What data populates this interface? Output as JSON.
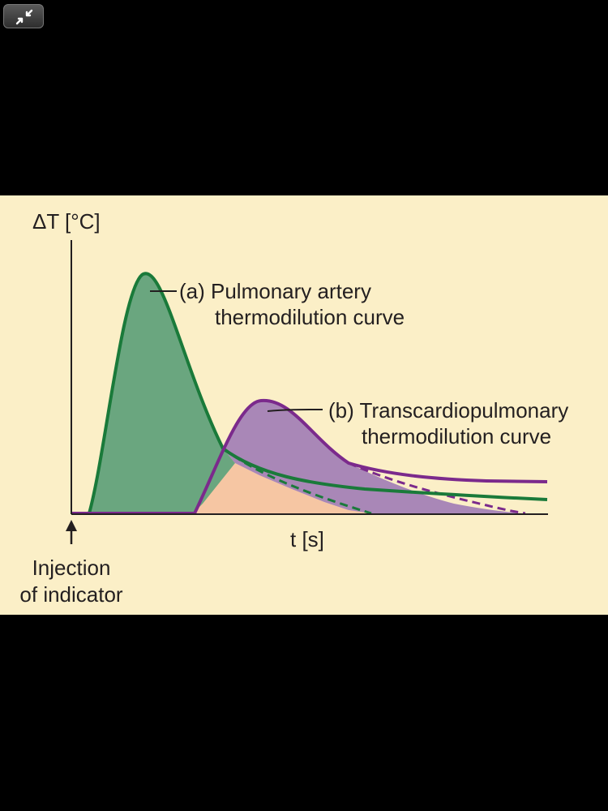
{
  "toolbar": {
    "collapse_icon": "collapse-arrows-icon"
  },
  "figure": {
    "y_axis_label": "ΔT [°C]",
    "x_axis_label": "t [s]",
    "curve_a": {
      "line1": "(a) Pulmonary artery",
      "line2": "thermodilution curve"
    },
    "curve_b": {
      "line1": "(b) Transcardiopulmonary",
      "line2": "thermodilution curve"
    },
    "injection": {
      "line1": "Injection",
      "line2": "of indicator"
    }
  },
  "colors": {
    "background": "#fbefc7",
    "curve_a": "#1a7a3a",
    "curve_a_fill": "#6aa67f",
    "curve_b": "#7b2a8c",
    "curve_b_fill": "#a987b7",
    "overlap_fill": "#f6c6a3",
    "axis": "#231f20"
  }
}
